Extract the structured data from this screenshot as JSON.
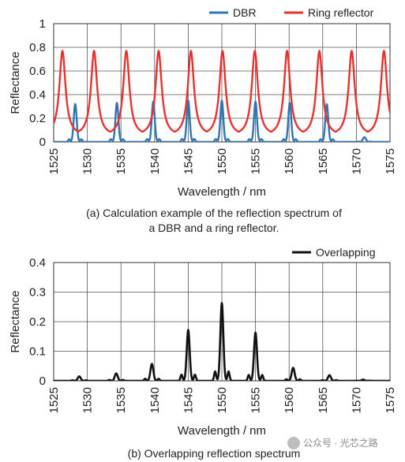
{
  "chart_data": [
    {
      "type": "line",
      "xlabel": "Wavelength / nm",
      "ylabel": "Reflectance",
      "xlim": [
        1525,
        1575
      ],
      "ylim": [
        0,
        1
      ],
      "x_ticks": [
        "1525",
        "1530",
        "1535",
        "1540",
        "1545",
        "1550",
        "1555",
        "1560",
        "1565",
        "1570",
        "1575"
      ],
      "y_ticks": [
        "0",
        "0.2",
        "0.4",
        "0.6",
        "0.8",
        "1"
      ],
      "grid": true,
      "legend_position": "top-right",
      "caption_lines": [
        "(a) Calculation example of the reflection spectrum of",
        "a DBR and a ring reflector."
      ],
      "series": [
        {
          "name": "DBR",
          "color": "#2e75b6",
          "kind": "dbr",
          "peaks": [
            {
              "x": 1528.2,
              "y": 0.32
            },
            {
              "x": 1534.4,
              "y": 0.33
            },
            {
              "x": 1539.8,
              "y": 0.34
            },
            {
              "x": 1545.0,
              "y": 0.35
            },
            {
              "x": 1550.0,
              "y": 0.35
            },
            {
              "x": 1555.0,
              "y": 0.34
            },
            {
              "x": 1560.1,
              "y": 0.33
            },
            {
              "x": 1565.6,
              "y": 0.32
            },
            {
              "x": 1571.2,
              "y": 0.04
            }
          ]
        },
        {
          "name": "Ring reflector",
          "color": "#e8322f",
          "kind": "ring",
          "peak_positions": [
            1526.3,
            1531.0,
            1535.8,
            1540.6,
            1545.4,
            1550.1,
            1554.9,
            1559.7,
            1564.5,
            1569.3,
            1574.1
          ],
          "peak_value": 0.77,
          "min_value": 0.05
        }
      ]
    },
    {
      "type": "line",
      "xlabel": "Wavelength / nm",
      "ylabel": "Reflectance",
      "xlim": [
        1525,
        1575
      ],
      "ylim": [
        0,
        0.4
      ],
      "x_ticks": [
        "1525",
        "1530",
        "1535",
        "1540",
        "1545",
        "1550",
        "1555",
        "1560",
        "1565",
        "1570",
        "1575"
      ],
      "y_ticks": [
        "0",
        "0.1",
        "0.2",
        "0.3",
        "0.4"
      ],
      "grid": true,
      "legend_position": "top-right",
      "caption_lines": [
        "(b) Overlapping reflection spectrum"
      ],
      "series": [
        {
          "name": "Overlapping",
          "color": "#111111",
          "kind": "overlap",
          "peaks": [
            {
              "x": 1528.8,
              "y": 0.015
            },
            {
              "x": 1534.3,
              "y": 0.025
            },
            {
              "x": 1539.6,
              "y": 0.057
            },
            {
              "x": 1545.0,
              "y": 0.172
            },
            {
              "x": 1550.0,
              "y": 0.263
            },
            {
              "x": 1555.0,
              "y": 0.163
            },
            {
              "x": 1560.6,
              "y": 0.044
            },
            {
              "x": 1566.0,
              "y": 0.019
            },
            {
              "x": 1571.0,
              "y": 0.004
            }
          ]
        }
      ]
    }
  ],
  "watermark": "公众号 · 光芯之路"
}
